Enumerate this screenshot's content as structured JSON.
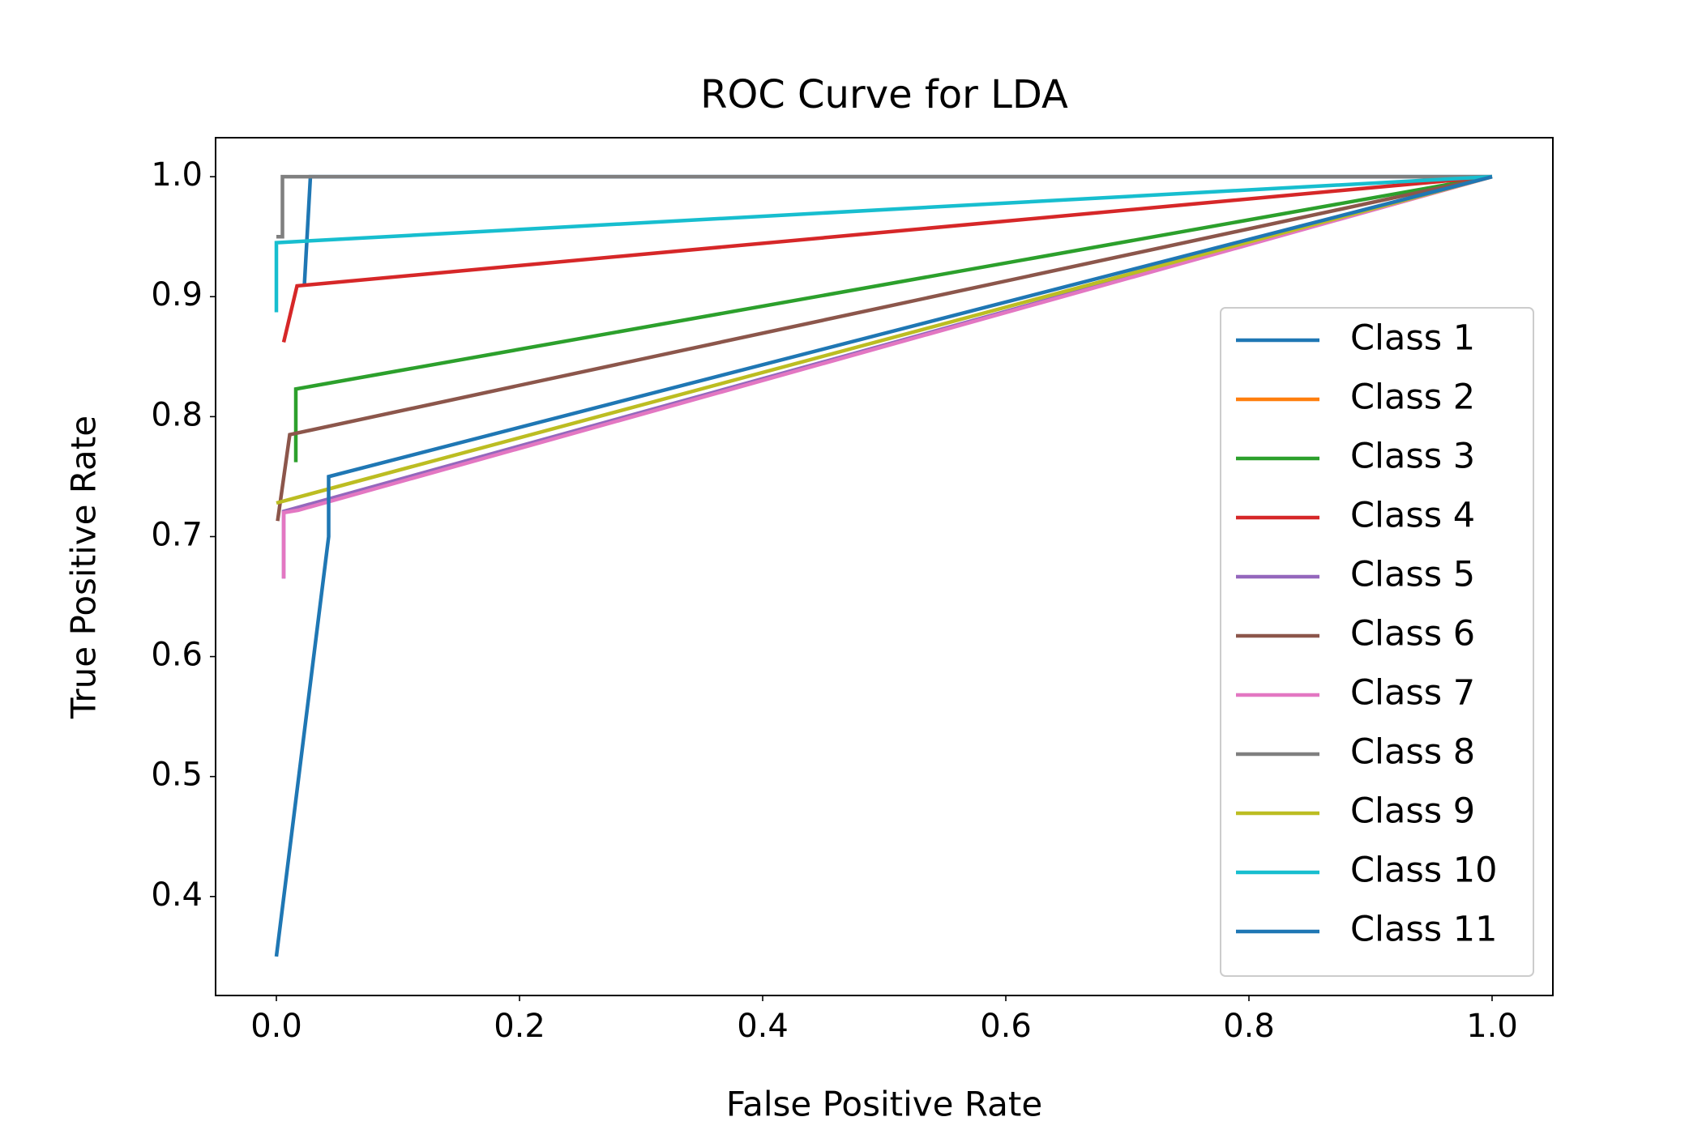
{
  "chart_data": {
    "type": "line",
    "title": "ROC Curve for LDA",
    "x_label": "False Positive Rate",
    "y_label": "True Positive Rate",
    "xlim": [
      -0.05,
      1.05
    ],
    "ylim": [
      0.3175,
      1.0325
    ],
    "xticks": [
      {
        "value": 0,
        "label": "0.0"
      },
      0.2,
      0.4,
      0.6,
      0.8,
      {
        "value": 1,
        "label": "1.0"
      }
    ],
    "yticks": [
      0.4,
      0.5,
      0.6,
      0.7,
      0.8,
      0.9,
      {
        "value": 1,
        "label": "1.0"
      }
    ],
    "grid": false,
    "legend": "lower right",
    "series": [
      {
        "name": "Class 1",
        "color": "#1f77b4",
        "x": [
          0.023,
          0.028,
          1
        ],
        "values": [
          0.909,
          1.0,
          1.0
        ]
      },
      {
        "name": "Class 2",
        "color": "#ff7f0e",
        "x": [
          0.005,
          1
        ],
        "values": [
          0.72,
          1.0
        ]
      },
      {
        "name": "Class 3",
        "color": "#2ca02c",
        "x": [
          0.016,
          0.016,
          1
        ],
        "values": [
          0.762,
          0.823,
          1.0
        ]
      },
      {
        "name": "Class 4",
        "color": "#d62728",
        "x": [
          0.006,
          0.017,
          1
        ],
        "values": [
          0.862,
          0.909,
          1.0
        ]
      },
      {
        "name": "Class 5",
        "color": "#9467bd",
        "x": [
          0.006,
          0.006,
          1
        ],
        "values": [
          0.665,
          0.721,
          1.0
        ]
      },
      {
        "name": "Class 6",
        "color": "#8c564b",
        "x": [
          0.001,
          0.011,
          1
        ],
        "values": [
          0.713,
          0.785,
          1.0
        ]
      },
      {
        "name": "Class 7",
        "color": "#e377c2",
        "x": [
          0.006,
          0.006,
          0.018,
          1
        ],
        "values": [
          0.665,
          0.72,
          0.722,
          1.0
        ]
      },
      {
        "name": "Class 8",
        "color": "#7f7f7f",
        "x": [
          0,
          0.005,
          0.005,
          1
        ],
        "values": [
          0.95,
          0.95,
          1.0,
          1.0
        ]
      },
      {
        "name": "Class 9",
        "color": "#bcbd22",
        "x": [
          0,
          1
        ],
        "values": [
          0.728,
          1.0
        ]
      },
      {
        "name": "Class 10",
        "color": "#17becf",
        "x": [
          0,
          0,
          1
        ],
        "values": [
          0.887,
          0.945,
          1.0
        ]
      },
      {
        "name": "Class 11",
        "color": "#1f77b4",
        "x": [
          0,
          0.043,
          0.043,
          1
        ],
        "values": [
          0.35,
          0.7,
          0.75,
          1.0
        ]
      }
    ]
  }
}
